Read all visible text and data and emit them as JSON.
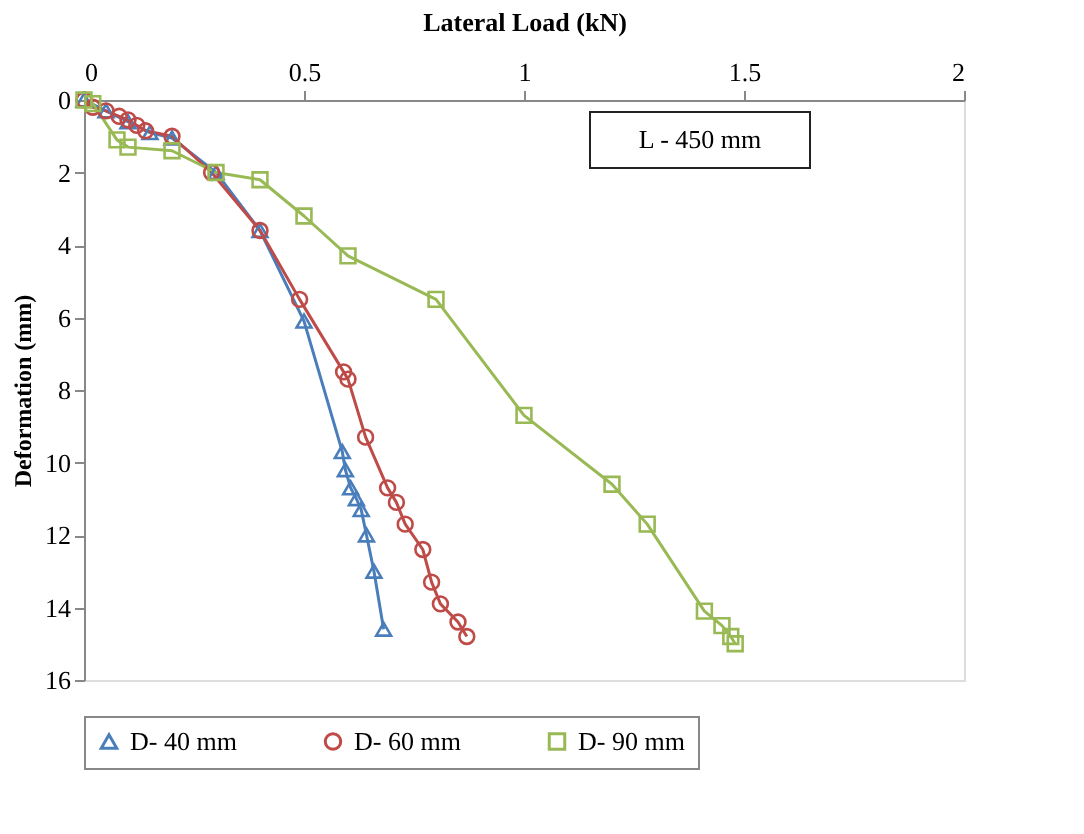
{
  "chart_data": {
    "type": "line",
    "xlabel": "Lateral Load (kN)",
    "ylabel": "Deformation (mm)",
    "xlim": [
      0,
      2
    ],
    "xticks": [
      0,
      0.5,
      1,
      1.5,
      2
    ],
    "ylim": [
      16,
      0
    ],
    "yticks": [
      0,
      2,
      4,
      6,
      8,
      10,
      12,
      14,
      16
    ],
    "grid": false,
    "legend": "bottom",
    "annotations": [
      "L - 450 mm"
    ],
    "series": [
      {
        "name": "D- 40 mm",
        "color": "#4a7ebb",
        "marker": "triangle",
        "x": [
          0,
          0.02,
          0.05,
          0.1,
          0.15,
          0.2,
          0.3,
          0.4,
          0.5,
          0.587,
          0.594,
          0.606,
          0.619,
          0.63,
          0.642,
          0.659,
          0.681
        ],
        "values": [
          0,
          null,
          0.3,
          0.6,
          0.9,
          1.05,
          2.0,
          3.6,
          6.1,
          9.7,
          10.2,
          10.7,
          11.0,
          11.3,
          12.0,
          13.0,
          14.6
        ]
      },
      {
        "name": "D- 60 mm",
        "color": "#be4b48",
        "marker": "circle",
        "x": [
          0,
          0.02,
          0.05,
          0.08,
          0.1,
          0.12,
          0.14,
          0.2,
          0.29,
          0.4,
          0.49,
          0.59,
          0.6,
          0.64,
          0.69,
          0.71,
          0.73,
          0.77,
          0.79,
          0.81,
          0.85,
          0.87
        ],
        "values": [
          0,
          0.2,
          0.3,
          0.45,
          0.55,
          0.7,
          0.85,
          1.0,
          2.0,
          3.6,
          5.5,
          7.5,
          7.7,
          9.3,
          10.7,
          11.1,
          11.7,
          12.4,
          13.3,
          13.9,
          14.4,
          14.8
        ]
      },
      {
        "name": "D- 90 mm",
        "color": "#98b954",
        "marker": "square",
        "x": [
          0,
          0.02,
          0.075,
          0.1,
          0.2,
          0.3,
          0.4,
          0.5,
          0.6,
          0.8,
          1.0,
          1.2,
          1.28,
          1.41,
          1.45,
          1.47,
          1.48
        ],
        "values": [
          0,
          0.1,
          1.1,
          1.3,
          1.4,
          2.0,
          2.2,
          3.2,
          4.3,
          5.5,
          8.7,
          10.6,
          11.7,
          14.1,
          14.5,
          14.8,
          15.0
        ]
      }
    ]
  }
}
